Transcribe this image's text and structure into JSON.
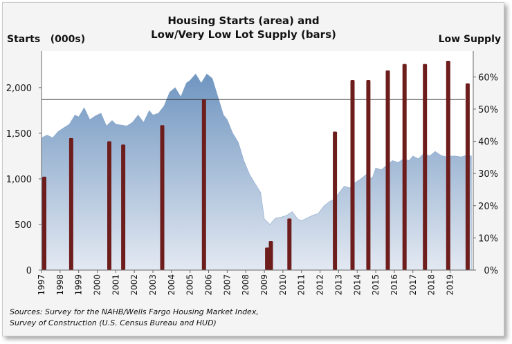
{
  "chart_data": {
    "type": "area+bar",
    "title": "Housing Starts (area) and",
    "title2": "Low/Very Low Lot Supply (bars)",
    "ylabel_left": "Starts   (000s)",
    "ylabel_right": "Low Supply",
    "ylim_left": [
      0,
      2400
    ],
    "ylim_right": [
      0,
      0.68
    ],
    "yticks_left": [
      "0",
      "500",
      "1,000",
      "1,500",
      "2,000"
    ],
    "yticks_right": [
      "0%",
      "10%",
      "20%",
      "30%",
      "40%",
      "50%",
      "60%"
    ],
    "x_tick_labels": [
      "1997",
      "1998",
      "1999",
      "2000",
      "2001",
      "2002",
      "2003",
      "2004",
      "2005",
      "2006",
      "2007",
      "2008",
      "2009",
      "2010",
      "2011",
      "2012",
      "2013",
      "2014",
      "2015",
      "2016",
      "2017",
      "2018",
      "2019"
    ],
    "xlim": [
      1997,
      2020.25
    ],
    "reference_line": {
      "value": 0.53,
      "axis": "right"
    },
    "colors": {
      "area": "#6f95c0",
      "area_fade": "#e3e9f2",
      "bars": "#6e1d1d",
      "plot_bg": "#ffffff",
      "frame": "#f4f4f4"
    },
    "series": [
      {
        "name": "Housing Starts",
        "axis": "left",
        "x": [
          1997.0,
          1997.3,
          1997.6,
          1997.9,
          1998.2,
          1998.5,
          1998.8,
          1999.0,
          1999.3,
          1999.6,
          1999.9,
          2000.2,
          2000.5,
          2000.8,
          2001.0,
          2001.3,
          2001.6,
          2001.9,
          2002.2,
          2002.5,
          2002.8,
          2003.0,
          2003.3,
          2003.6,
          2003.9,
          2004.2,
          2004.5,
          2004.8,
          2005.0,
          2005.3,
          2005.6,
          2005.9,
          2006.2,
          2006.5,
          2006.8,
          2007.0,
          2007.3,
          2007.6,
          2007.9,
          2008.2,
          2008.5,
          2008.8,
          2009.0,
          2009.3,
          2009.6,
          2009.9,
          2010.2,
          2010.5,
          2010.8,
          2011.0,
          2011.3,
          2011.6,
          2011.9,
          2012.2,
          2012.5,
          2012.8,
          2013.0,
          2013.3,
          2013.6,
          2013.9,
          2014.2,
          2014.5,
          2014.8,
          2015.0,
          2015.3,
          2015.6,
          2015.9,
          2016.2,
          2016.5,
          2016.8,
          2017.0,
          2017.3,
          2017.6,
          2017.9,
          2018.2,
          2018.5,
          2018.8,
          2019.0,
          2019.3,
          2019.6,
          2019.9,
          2020.15
        ],
        "values": [
          1450,
          1480,
          1450,
          1520,
          1560,
          1600,
          1700,
          1680,
          1780,
          1650,
          1690,
          1720,
          1580,
          1640,
          1600,
          1590,
          1580,
          1620,
          1700,
          1620,
          1750,
          1700,
          1720,
          1800,
          1950,
          2000,
          1900,
          2050,
          2080,
          2150,
          2050,
          2150,
          2100,
          1900,
          1700,
          1650,
          1500,
          1400,
          1200,
          1050,
          950,
          850,
          560,
          500,
          570,
          580,
          600,
          640,
          560,
          540,
          570,
          600,
          620,
          700,
          750,
          780,
          840,
          920,
          900,
          960,
          1000,
          1050,
          1000,
          1120,
          1100,
          1150,
          1200,
          1180,
          1220,
          1200,
          1250,
          1220,
          1280,
          1250,
          1300,
          1260,
          1240,
          1250,
          1250,
          1240,
          1260,
          1250
        ]
      },
      {
        "name": "Low/Very Low Lot Supply",
        "axis": "right",
        "x": [
          1997.15,
          1998.6,
          2000.65,
          2001.4,
          2003.5,
          2005.75,
          2009.15,
          2009.35,
          2010.35,
          2012.8,
          2013.75,
          2014.6,
          2015.65,
          2016.55,
          2017.65,
          2018.9,
          2019.95
        ],
        "values": [
          0.29,
          0.41,
          0.4,
          0.39,
          0.45,
          0.53,
          0.07,
          0.09,
          0.16,
          0.43,
          0.59,
          0.59,
          0.62,
          0.64,
          0.64,
          0.65,
          0.58
        ]
      }
    ]
  },
  "source_lines": [
    "Sources: Survey for the NAHB/Wells Fargo Housing Market Index,",
    "Survey of Construction (U.S. Census Bureau and HUD)"
  ]
}
